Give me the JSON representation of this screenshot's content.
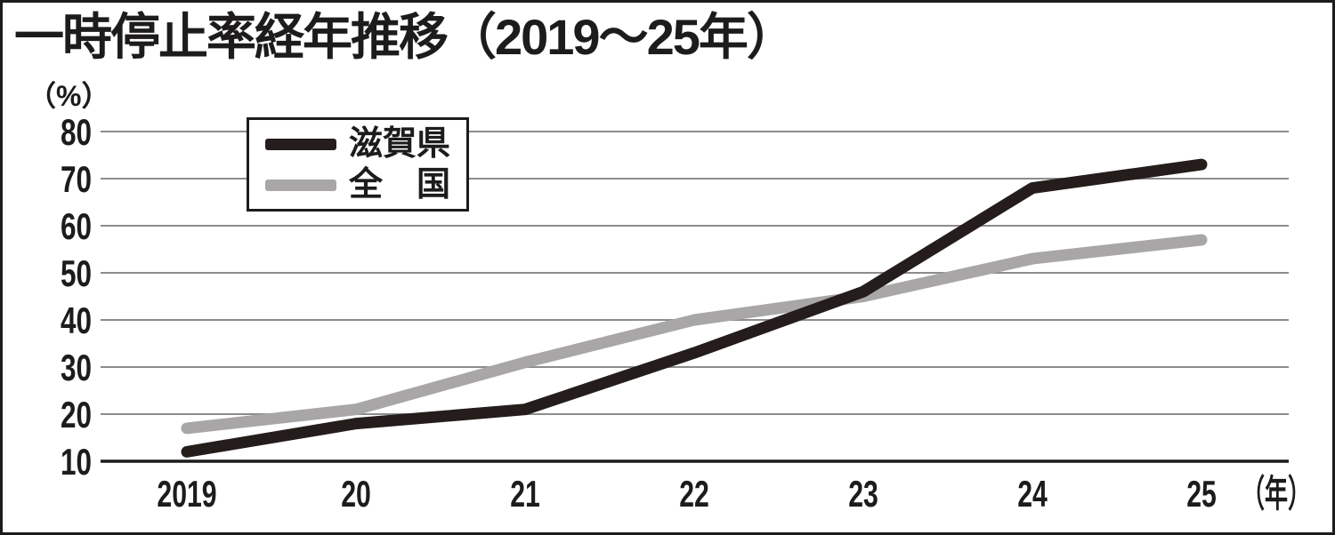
{
  "title": "一時停止率経年推移（2019～25年）",
  "y_axis_unit": "（%）",
  "x_axis_unit": "（年）",
  "legend": {
    "items": [
      {
        "label": "滋賀県",
        "color": "#241d1b"
      },
      {
        "label": "全　国",
        "color": "#a8a6a7"
      }
    ]
  },
  "chart_data": {
    "type": "line",
    "title": "一時停止率経年推移（2019～25年）",
    "categories": [
      "2019",
      "20",
      "21",
      "22",
      "23",
      "24",
      "25"
    ],
    "series": [
      {
        "name": "滋賀県",
        "color": "#241d1b",
        "values": [
          12,
          18,
          21,
          33,
          46,
          68,
          73
        ]
      },
      {
        "name": "全国",
        "color": "#a8a6a7",
        "values": [
          17,
          21,
          31,
          40,
          45,
          53,
          57
        ]
      }
    ],
    "ylabel": "（%）",
    "xlabel": "（年）",
    "ylim": [
      10,
      80
    ],
    "yticks": [
      80,
      70,
      60,
      50,
      40,
      30,
      20,
      10
    ],
    "grid": true,
    "legend_position": "top-left",
    "unit": "%"
  }
}
